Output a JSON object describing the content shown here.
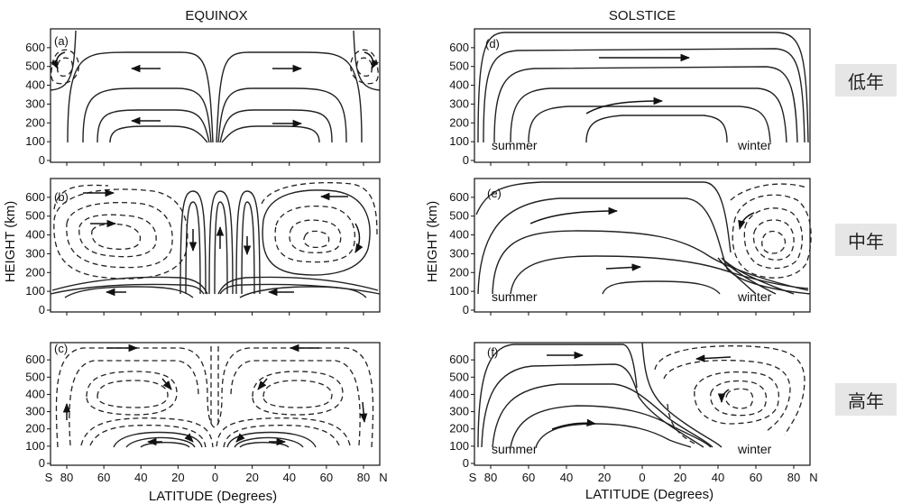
{
  "titles": {
    "left": "EQUINOX",
    "right": "SOLSTICE"
  },
  "axes": {
    "ylabel": "HEIGHT  (km)",
    "xlabel": "LATITUDE  (Degrees)",
    "y_ticks": [
      "0",
      "100",
      "200",
      "300",
      "400",
      "500",
      "600"
    ],
    "x_ticks": [
      "S",
      "80",
      "60",
      "40",
      "20",
      "0",
      "20",
      "40",
      "60",
      "80",
      "N"
    ]
  },
  "panels": [
    {
      "id": "a",
      "label": "(a)",
      "season": "equinox",
      "row": 1
    },
    {
      "id": "b",
      "label": "(b)",
      "season": "equinox",
      "row": 2
    },
    {
      "id": "c",
      "label": "(c)",
      "season": "equinox",
      "row": 3
    },
    {
      "id": "d",
      "label": "(d)",
      "season": "solstice",
      "row": 1,
      "left_text": "summer",
      "right_text": "winter"
    },
    {
      "id": "e",
      "label": "(e)",
      "season": "solstice",
      "row": 2,
      "left_text": "summer",
      "right_text": "winter"
    },
    {
      "id": "f",
      "label": "(f)",
      "season": "solstice",
      "row": 3,
      "left_text": "summer",
      "right_text": "winter"
    }
  ],
  "row_labels": [
    "低年",
    "中年",
    "高年"
  ]
}
